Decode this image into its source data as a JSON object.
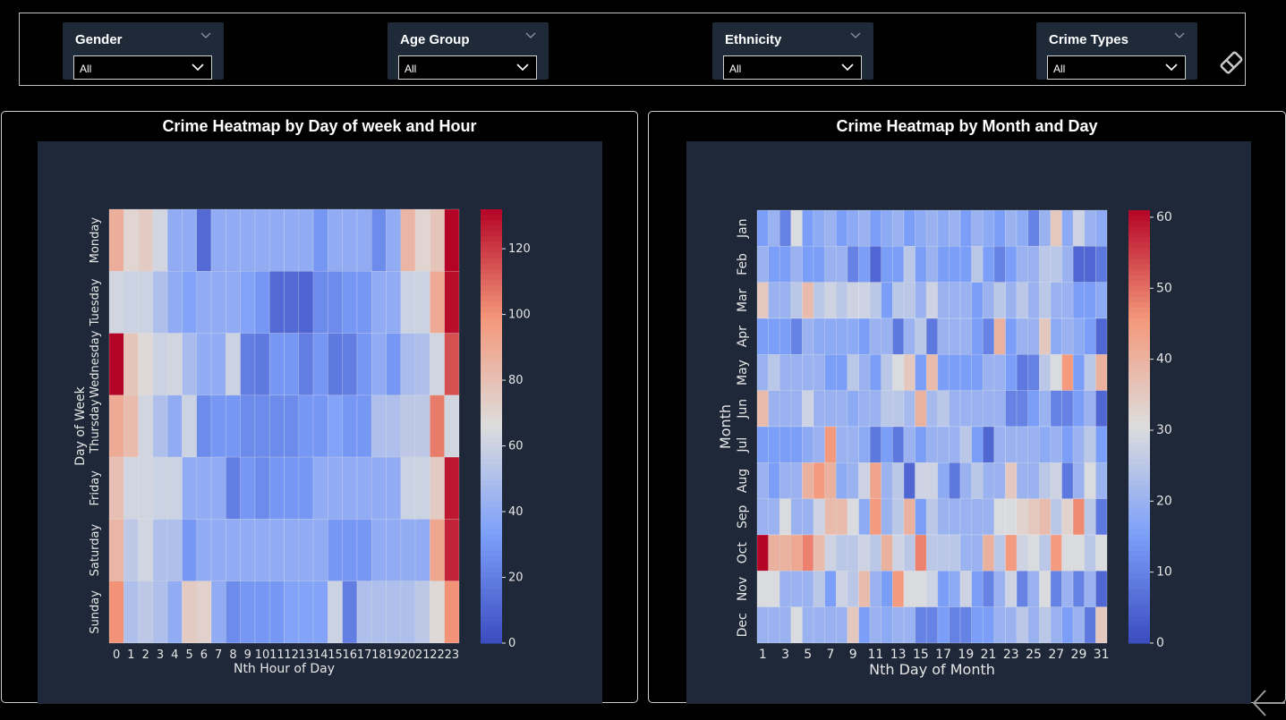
{
  "filters": [
    {
      "title": "Gender",
      "value": "All"
    },
    {
      "title": "Age Group",
      "value": "All"
    },
    {
      "title": "Ethnicity",
      "value": "All"
    },
    {
      "title": "Crime Types",
      "value": "All"
    }
  ],
  "icons": {
    "clear_filters": "eraser-icon",
    "back": "back-arrow-icon"
  },
  "colors": {
    "plot_bg": "#1e2838",
    "slicer_bg": "#1e2a38",
    "cmap": "coolwarm"
  },
  "chart_data": [
    {
      "type": "heatmap",
      "title": "Crime Heatmap by Day of week and Hour",
      "xlabel": "Nth Hour of Day",
      "ylabel": "Day of Week",
      "x": [
        "0",
        "1",
        "2",
        "3",
        "4",
        "5",
        "6",
        "7",
        "8",
        "9",
        "10",
        "11",
        "12",
        "13",
        "14",
        "15",
        "16",
        "17",
        "18",
        "19",
        "20",
        "21",
        "22",
        "23"
      ],
      "y": [
        "Monday",
        "Tuesday",
        "Wednesday",
        "Thursday",
        "Friday",
        "Saturday",
        "Sunday"
      ],
      "colorbar": {
        "min": 0,
        "max": 132,
        "ticks": [
          0,
          20,
          40,
          60,
          80,
          100,
          120
        ]
      },
      "values": [
        [
          88,
          70,
          75,
          62,
          40,
          40,
          12,
          40,
          40,
          40,
          40,
          40,
          40,
          40,
          30,
          40,
          40,
          40,
          25,
          40,
          85,
          70,
          78,
          132
        ],
        [
          62,
          60,
          60,
          50,
          40,
          35,
          40,
          40,
          40,
          35,
          30,
          12,
          12,
          10,
          25,
          25,
          30,
          30,
          40,
          40,
          60,
          60,
          90,
          130
        ],
        [
          132,
          78,
          68,
          60,
          62,
          48,
          40,
          40,
          60,
          20,
          18,
          30,
          30,
          20,
          30,
          18,
          20,
          30,
          40,
          30,
          48,
          50,
          62,
          115
        ],
        [
          90,
          82,
          62,
          50,
          40,
          60,
          25,
          30,
          30,
          25,
          25,
          25,
          25,
          30,
          30,
          35,
          30,
          30,
          50,
          50,
          55,
          55,
          105,
          62
        ],
        [
          80,
          62,
          62,
          60,
          60,
          40,
          40,
          40,
          20,
          30,
          25,
          30,
          30,
          30,
          40,
          40,
          40,
          40,
          40,
          40,
          60,
          60,
          75,
          128
        ],
        [
          85,
          55,
          62,
          50,
          50,
          30,
          40,
          40,
          40,
          40,
          40,
          40,
          40,
          40,
          40,
          30,
          30,
          30,
          40,
          40,
          40,
          40,
          92,
          125
        ],
        [
          100,
          50,
          55,
          50,
          40,
          75,
          72,
          40,
          25,
          30,
          30,
          30,
          35,
          35,
          35,
          60,
          20,
          50,
          50,
          50,
          50,
          55,
          68,
          100
        ]
      ]
    },
    {
      "type": "heatmap",
      "title": "Crime Heatmap by Month and Day",
      "xlabel": "Nth Day of Month",
      "ylabel": "Month",
      "x": [
        "1",
        "2",
        "3",
        "4",
        "5",
        "6",
        "7",
        "8",
        "9",
        "10",
        "11",
        "12",
        "13",
        "14",
        "15",
        "16",
        "17",
        "18",
        "19",
        "20",
        "21",
        "22",
        "23",
        "24",
        "25",
        "26",
        "27",
        "28",
        "29",
        "30",
        "31"
      ],
      "y": [
        "Jan",
        "Feb",
        "Mar",
        "Apr",
        "May",
        "Jun",
        "Jul",
        "Aug",
        "Sep",
        "Oct",
        "Nov",
        "Dec"
      ],
      "colorbar": {
        "min": 0,
        "max": 61,
        "ticks": [
          0,
          10,
          20,
          30,
          40,
          50,
          60
        ]
      },
      "values": [
        [
          15,
          20,
          10,
          30,
          15,
          18,
          20,
          15,
          18,
          20,
          15,
          18,
          20,
          15,
          18,
          20,
          18,
          20,
          15,
          20,
          18,
          15,
          20,
          18,
          10,
          20,
          35,
          18,
          28,
          20,
          18
        ],
        [
          20,
          15,
          15,
          20,
          15,
          15,
          20,
          20,
          10,
          15,
          5,
          15,
          15,
          25,
          15,
          20,
          15,
          15,
          15,
          25,
          15,
          10,
          15,
          20,
          20,
          25,
          25,
          20,
          5,
          5,
          8
        ],
        [
          35,
          20,
          20,
          25,
          38,
          25,
          28,
          25,
          28,
          28,
          25,
          15,
          25,
          25,
          20,
          28,
          20,
          20,
          20,
          15,
          20,
          25,
          20,
          25,
          20,
          25,
          20,
          20,
          15,
          15,
          18
        ],
        [
          15,
          15,
          15,
          10,
          20,
          18,
          18,
          18,
          18,
          15,
          20,
          20,
          8,
          20,
          25,
          8,
          20,
          20,
          20,
          15,
          10,
          40,
          15,
          20,
          20,
          35,
          18,
          20,
          18,
          15,
          5
        ],
        [
          20,
          25,
          20,
          20,
          20,
          20,
          15,
          15,
          25,
          20,
          15,
          25,
          30,
          35,
          15,
          38,
          15,
          15,
          15,
          15,
          20,
          20,
          15,
          8,
          10,
          25,
          30,
          45,
          15,
          25,
          40
        ],
        [
          38,
          20,
          20,
          20,
          28,
          20,
          20,
          20,
          18,
          20,
          20,
          25,
          25,
          22,
          40,
          22,
          25,
          20,
          20,
          20,
          20,
          20,
          10,
          10,
          15,
          20,
          10,
          10,
          15,
          20,
          5
        ],
        [
          15,
          15,
          15,
          15,
          18,
          20,
          45,
          20,
          20,
          18,
          8,
          15,
          8,
          20,
          15,
          20,
          20,
          20,
          25,
          15,
          5,
          20,
          20,
          20,
          20,
          18,
          20,
          15,
          20,
          25,
          15
        ],
        [
          20,
          15,
          20,
          20,
          40,
          45,
          40,
          18,
          20,
          28,
          43,
          20,
          25,
          5,
          28,
          28,
          18,
          8,
          20,
          25,
          20,
          20,
          35,
          20,
          20,
          25,
          28,
          8,
          20,
          30,
          20
        ],
        [
          20,
          20,
          30,
          20,
          20,
          28,
          38,
          38,
          30,
          18,
          45,
          20,
          25,
          40,
          15,
          25,
          20,
          20,
          20,
          20,
          20,
          30,
          30,
          33,
          35,
          38,
          25,
          33,
          47,
          25,
          8
        ],
        [
          61,
          40,
          40,
          42,
          48,
          38,
          28,
          25,
          25,
          28,
          25,
          40,
          28,
          25,
          48,
          25,
          25,
          25,
          20,
          20,
          40,
          25,
          45,
          28,
          30,
          25,
          45,
          30,
          30,
          25,
          30
        ],
        [
          30,
          30,
          20,
          20,
          20,
          25,
          15,
          28,
          25,
          38,
          20,
          15,
          45,
          30,
          30,
          28,
          15,
          18,
          28,
          15,
          10,
          20,
          28,
          10,
          20,
          30,
          10,
          20,
          10,
          20,
          5
        ],
        [
          20,
          20,
          20,
          30,
          20,
          20,
          20,
          20,
          35,
          15,
          20,
          18,
          20,
          20,
          10,
          10,
          15,
          10,
          10,
          15,
          15,
          20,
          20,
          25,
          20,
          25,
          20,
          15,
          20,
          8,
          35
        ]
      ]
    }
  ]
}
